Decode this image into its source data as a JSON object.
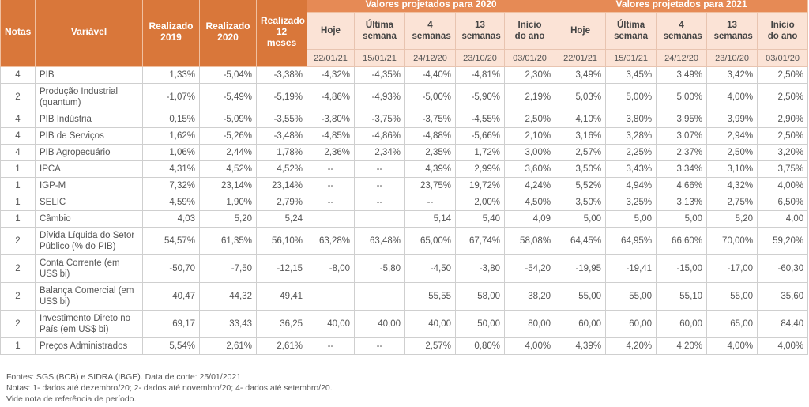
{
  "header": {
    "notas": "Notas",
    "variavel": "Variável",
    "realizado": [
      "Realizado 2019",
      "Realizado 2020",
      "Realizado 12 meses"
    ],
    "groups": [
      {
        "title": "Valores projetados para 2020",
        "columns": [
          {
            "label": "Hoje",
            "date": "22/01/21"
          },
          {
            "label": "Última semana",
            "date": "15/01/21"
          },
          {
            "label": "4 semanas",
            "date": "24/12/20"
          },
          {
            "label": "13 semanas",
            "date": "23/10/20"
          },
          {
            "label": "Início do ano",
            "date": "03/01/20"
          }
        ]
      },
      {
        "title": "Valores projetados para 2021",
        "columns": [
          {
            "label": "Hoje",
            "date": "22/01/21"
          },
          {
            "label": "Última semana",
            "date": "15/01/21"
          },
          {
            "label": "4 semanas",
            "date": "24/12/20"
          },
          {
            "label": "13 semanas",
            "date": "23/10/20"
          },
          {
            "label": "Início do ano",
            "date": "03/01/20"
          }
        ]
      }
    ]
  },
  "table": {
    "rows": [
      [
        "4",
        "PIB",
        "1,33%",
        "-5,04%",
        "-3,38%",
        "-4,32%",
        "-4,35%",
        "-4,40%",
        "-4,81%",
        "2,30%",
        "3,49%",
        "3,45%",
        "3,49%",
        "3,42%",
        "2,50%"
      ],
      [
        "2",
        "Produção Industrial (quantum)",
        "-1,07%",
        "-5,49%",
        "-5,19%",
        "-4,86%",
        "-4,93%",
        "-5,00%",
        "-5,90%",
        "2,19%",
        "5,03%",
        "5,00%",
        "5,00%",
        "4,00%",
        "2,50%"
      ],
      [
        "4",
        "PIB Indústria",
        "0,15%",
        "-5,09%",
        "-3,55%",
        "-3,80%",
        "-3,75%",
        "-3,75%",
        "-4,55%",
        "2,50%",
        "4,10%",
        "3,80%",
        "3,95%",
        "3,99%",
        "2,90%"
      ],
      [
        "4",
        "PIB de Serviços",
        "1,62%",
        "-5,26%",
        "-3,48%",
        "-4,85%",
        "-4,86%",
        "-4,88%",
        "-5,66%",
        "2,10%",
        "3,16%",
        "3,28%",
        "3,07%",
        "2,94%",
        "2,50%"
      ],
      [
        "4",
        "PIB Agropecuário",
        "1,06%",
        "2,44%",
        "1,78%",
        "2,36%",
        "2,34%",
        "2,35%",
        "1,72%",
        "3,00%",
        "2,57%",
        "2,25%",
        "2,37%",
        "2,50%",
        "3,20%"
      ],
      [
        "1",
        "IPCA",
        "4,31%",
        "4,52%",
        "4,52%",
        "--",
        "--",
        "4,39%",
        "2,99%",
        "3,60%",
        "3,50%",
        "3,43%",
        "3,34%",
        "3,10%",
        "3,75%"
      ],
      [
        "1",
        "IGP-M",
        "7,32%",
        "23,14%",
        "23,14%",
        "--",
        "--",
        "23,75%",
        "19,72%",
        "4,24%",
        "5,52%",
        "4,94%",
        "4,66%",
        "4,32%",
        "4,00%"
      ],
      [
        "1",
        "SELIC",
        "4,59%",
        "1,90%",
        "2,79%",
        "--",
        "--",
        "--",
        "2,00%",
        "4,50%",
        "3,50%",
        "3,25%",
        "3,13%",
        "2,75%",
        "6,50%"
      ],
      [
        "1",
        "Câmbio",
        "4,03",
        "5,20",
        "5,24",
        null,
        null,
        "5,14",
        "5,40",
        "4,09",
        "5,00",
        "5,00",
        "5,00",
        "5,20",
        "4,00"
      ],
      [
        "2",
        "Dívida Líquida do Setor Público (% do PIB)",
        "54,57%",
        "61,35%",
        "56,10%",
        "63,28%",
        "63,48%",
        "65,00%",
        "67,74%",
        "58,08%",
        "64,45%",
        "64,95%",
        "66,60%",
        "70,00%",
        "59,20%"
      ],
      [
        "2",
        "Conta Corrente (em US$ bi)",
        "-50,70",
        "-7,50",
        "-12,15",
        "-8,00",
        "-5,80",
        "-4,50",
        "-3,80",
        "-54,20",
        "-19,95",
        "-19,41",
        "-15,00",
        "-17,00",
        "-60,30"
      ],
      [
        "2",
        "Balança Comercial (em US$ bi)",
        "40,47",
        "44,32",
        "49,41",
        null,
        null,
        "55,55",
        "58,00",
        "38,20",
        "55,00",
        "55,00",
        "55,10",
        "55,00",
        "35,60"
      ],
      [
        "2",
        "Investimento Direto no País (em US$ bi)",
        "69,17",
        "33,43",
        "36,25",
        "40,00",
        "40,00",
        "40,00",
        "50,00",
        "80,00",
        "60,00",
        "60,00",
        "60,00",
        "65,00",
        "84,40"
      ],
      [
        "1",
        "Preços Administrados",
        "5,54%",
        "2,61%",
        "2,61%",
        "--",
        "--",
        "2,57%",
        "0,80%",
        "4,00%",
        "4,39%",
        "4,20%",
        "4,20%",
        "4,00%",
        "4,00%"
      ]
    ]
  },
  "footer": [
    "Fontes: SGS (BCB) e  SIDRA (IBGE). Data de corte: 25/01/2021",
    "Notas:  1- dados até dezembro/20; 2- dados até novembro/20; 4- dados até  setembro/20.",
    "Vide nota de referência de período."
  ]
}
